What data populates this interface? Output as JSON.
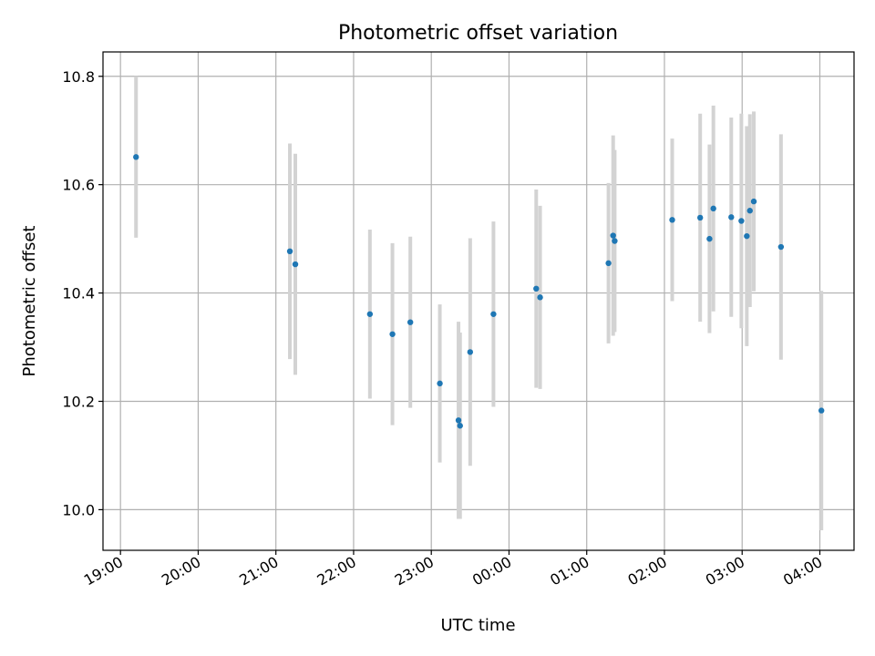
{
  "chart_data": {
    "type": "scatter",
    "title": "Photometric offset variation",
    "xlabel": "UTC time",
    "ylabel": "Photometric offset",
    "x_units": "hours since 19:00 UTC",
    "xlim": [
      -0.225,
      9.44
    ],
    "ylim": [
      9.925,
      10.845
    ],
    "grid": true,
    "colors": {
      "point": "#1f77b4",
      "errorbar": "#d3d3d3",
      "grid": "#b0b0b0"
    },
    "x_ticks": [
      {
        "value": 0,
        "label": "19:00"
      },
      {
        "value": 1,
        "label": "20:00"
      },
      {
        "value": 2,
        "label": "21:00"
      },
      {
        "value": 3,
        "label": "22:00"
      },
      {
        "value": 4,
        "label": "23:00"
      },
      {
        "value": 5,
        "label": "00:00"
      },
      {
        "value": 6,
        "label": "01:00"
      },
      {
        "value": 7,
        "label": "02:00"
      },
      {
        "value": 8,
        "label": "03:00"
      },
      {
        "value": 9,
        "label": "04:00"
      }
    ],
    "y_ticks": [
      {
        "value": 10.0,
        "label": "10.0"
      },
      {
        "value": 10.2,
        "label": "10.2"
      },
      {
        "value": 10.4,
        "label": "10.4"
      },
      {
        "value": 10.6,
        "label": "10.6"
      },
      {
        "value": 10.8,
        "label": "10.8"
      }
    ],
    "points": [
      {
        "x": 0.2,
        "y": 10.651,
        "err": 0.149
      },
      {
        "x": 2.18,
        "y": 10.477,
        "err": 0.199
      },
      {
        "x": 2.25,
        "y": 10.453,
        "err": 0.204
      },
      {
        "x": 3.21,
        "y": 10.361,
        "err": 0.156
      },
      {
        "x": 3.5,
        "y": 10.324,
        "err": 0.168
      },
      {
        "x": 3.73,
        "y": 10.346,
        "err": 0.158
      },
      {
        "x": 4.11,
        "y": 10.233,
        "err": 0.146
      },
      {
        "x": 4.35,
        "y": 10.165,
        "err": 0.182
      },
      {
        "x": 4.37,
        "y": 10.155,
        "err": 0.172
      },
      {
        "x": 4.5,
        "y": 10.291,
        "err": 0.21
      },
      {
        "x": 4.8,
        "y": 10.361,
        "err": 0.171
      },
      {
        "x": 5.35,
        "y": 10.408,
        "err": 0.183
      },
      {
        "x": 5.4,
        "y": 10.392,
        "err": 0.169
      },
      {
        "x": 6.28,
        "y": 10.455,
        "err": 0.148
      },
      {
        "x": 6.34,
        "y": 10.506,
        "err": 0.185
      },
      {
        "x": 6.36,
        "y": 10.496,
        "err": 0.168
      },
      {
        "x": 7.1,
        "y": 10.535,
        "err": 0.15
      },
      {
        "x": 7.46,
        "y": 10.539,
        "err": 0.192
      },
      {
        "x": 7.58,
        "y": 10.5,
        "err": 0.174
      },
      {
        "x": 7.63,
        "y": 10.556,
        "err": 0.19
      },
      {
        "x": 7.86,
        "y": 10.54,
        "err": 0.184
      },
      {
        "x": 7.99,
        "y": 10.533,
        "err": 0.198
      },
      {
        "x": 8.06,
        "y": 10.505,
        "err": 0.203
      },
      {
        "x": 8.1,
        "y": 10.552,
        "err": 0.178
      },
      {
        "x": 8.15,
        "y": 10.569,
        "err": 0.166
      },
      {
        "x": 8.5,
        "y": 10.485,
        "err": 0.208
      },
      {
        "x": 9.02,
        "y": 10.183,
        "err": 0.221
      }
    ]
  }
}
